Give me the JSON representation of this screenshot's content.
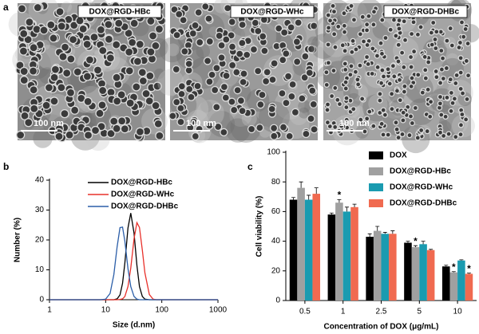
{
  "panel_a": {
    "label": "a",
    "images": [
      {
        "label": "DOX@RGD-HBc",
        "scale": "100 nm"
      },
      {
        "label": "DOX@RGD-WHc",
        "scale": "100 nm"
      },
      {
        "label": "DOX@RGD-DHBc",
        "scale": "100 nm"
      }
    ]
  },
  "chart_data": [
    {
      "type": "line",
      "panel_label": "b",
      "xlabel": "Size (d.nm)",
      "ylabel": "Number (%)",
      "xscale": "log",
      "x": [
        1,
        5,
        8,
        10,
        12,
        14,
        16,
        18,
        20,
        22,
        25,
        28,
        32,
        36,
        40,
        45,
        50,
        60,
        70,
        80,
        100,
        1000
      ],
      "series": [
        {
          "name": "DOX@RGD-HBc",
          "color": "#000000",
          "values": [
            0,
            0,
            0,
            0,
            0,
            0,
            0.3,
            1.6,
            5.5,
            12.3,
            24,
            29,
            22.3,
            11.5,
            4.4,
            1.1,
            0.2,
            0,
            0,
            0,
            0,
            0
          ]
        },
        {
          "name": "DOX@RGD-WHc",
          "color": "#e8302a",
          "values": [
            0,
            0,
            0,
            0,
            0,
            0,
            0,
            0.1,
            0.3,
            1.1,
            4.4,
            10.6,
            20.4,
            25.8,
            24.2,
            16.6,
            9,
            1.7,
            0.2,
            0,
            0,
            0
          ]
        },
        {
          "name": "DOX@RGD-DHBc",
          "color": "#2b5ea8",
          "values": [
            0,
            0,
            0,
            0.2,
            2.1,
            8.4,
            17.7,
            24.1,
            24.3,
            19.6,
            10.4,
            4.4,
            1.1,
            0.2,
            0,
            0,
            0,
            0,
            0,
            0,
            0,
            0
          ]
        }
      ],
      "xlim": [
        1,
        1000
      ],
      "xticks": [
        1,
        10,
        100,
        1000
      ],
      "ylim": [
        0,
        40
      ],
      "yticks": [
        0,
        10,
        20,
        30,
        40
      ]
    },
    {
      "type": "bar",
      "panel_label": "c",
      "xlabel": "Concentration of DOX  (μg/mL)",
      "ylabel": "Cell viability (%)",
      "categories": [
        "0.5",
        "1",
        "2.5",
        "5",
        "10"
      ],
      "series": [
        {
          "name": "DOX",
          "color": "#000000",
          "values": [
            68,
            58,
            43,
            39,
            23
          ],
          "errors": [
            1.5,
            1,
            2,
            1,
            0.8
          ]
        },
        {
          "name": "DOX@RGD-HBc",
          "color": "#a0a0a0",
          "values": [
            76,
            66,
            47,
            36,
            19
          ],
          "errors": [
            4,
            2,
            3,
            1,
            0.5
          ]
        },
        {
          "name": "DOX@RGD-WHc",
          "color": "#1a9bb0",
          "values": [
            68,
            60,
            45,
            38,
            27
          ],
          "errors": [
            3,
            3,
            1,
            2,
            0.5
          ]
        },
        {
          "name": "DOX@RGD-DHBc",
          "color": "#f06a50",
          "values": [
            72,
            63,
            45,
            34,
            18
          ],
          "errors": [
            4,
            2,
            2,
            0.5,
            0.5
          ]
        }
      ],
      "annotations": [
        {
          "text": "*",
          "series": 1,
          "category": 1
        },
        {
          "text": "*",
          "series": 1,
          "category": 3
        },
        {
          "text": "*",
          "series": 1,
          "category": 4
        },
        {
          "text": "*",
          "series": 3,
          "category": 4
        }
      ],
      "ylim": [
        0,
        100
      ],
      "yticks": [
        0,
        20,
        40,
        60,
        80,
        100
      ]
    }
  ]
}
